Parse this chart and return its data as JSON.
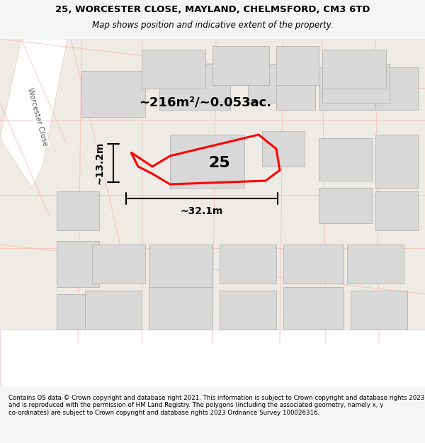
{
  "title_line1": "25, WORCESTER CLOSE, MAYLAND, CHELMSFORD, CM3 6TD",
  "title_line2": "Map shows position and indicative extent of the property.",
  "area_text": "~216m²/~0.053ac.",
  "width_label": "~32.1m",
  "height_label": "~13.2m",
  "number_label": "25",
  "footer_text": "Contains OS data © Crown copyright and database right 2021. This information is subject to Crown copyright and database rights 2023 and is reproduced with the permission of HM Land Registry. The polygons (including the associated geometry, namely x, y co-ordinates) are subject to Crown copyright and database rights 2023 Ordnance Survey 100026316.",
  "bg_color": "#f5f5f5",
  "map_bg": "#f0eeec",
  "building_color": "#d9d9d9",
  "road_color": "#ffffff",
  "plot_outline_color": "#ff0000",
  "plot_fill_color": "none",
  "dim_line_color": "#000000",
  "street_label": "Worcester Close"
}
